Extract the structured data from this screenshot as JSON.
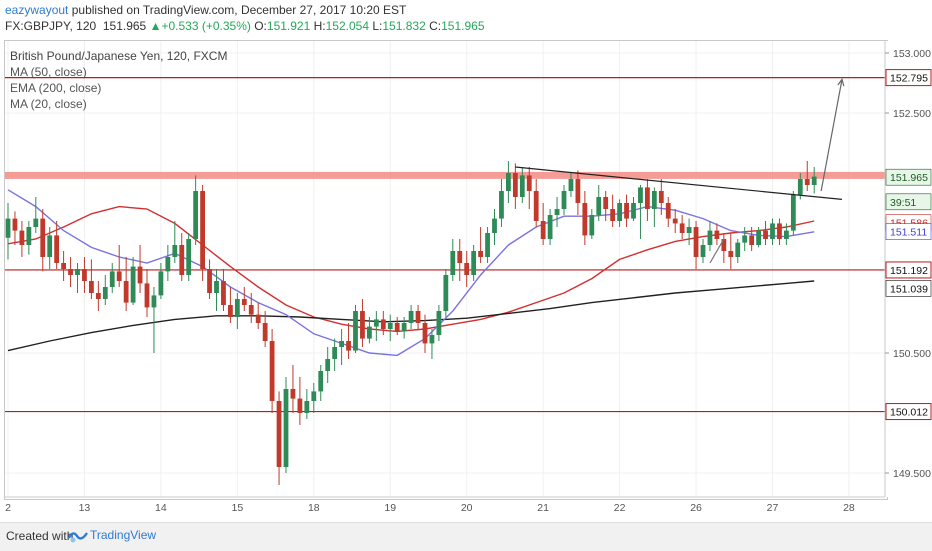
{
  "header": {
    "user": "eazywayout",
    "published": "published on TradingView.com, December 27, 2017 10:20 EST",
    "symbol": "FX:GBPJPY, 120",
    "price": "151.965",
    "change_arrow": "▲",
    "change": "+0.533 (+0.35%)",
    "o_label": "O:",
    "o": "151.921",
    "h_label": "H:",
    "h": "152.054",
    "l_label": "L:",
    "l": "151.832",
    "c_label": "C:",
    "c": "151.965"
  },
  "legend": {
    "title": "British Pound/Japanese Yen, 120, FXCM",
    "ind1": "MA (50, close)",
    "ind2": "EMA (200, close)",
    "ind3": "MA (20, close)"
  },
  "footer": {
    "created": "Created with",
    "brand": "TradingView"
  },
  "chart_data": {
    "type": "candlestick",
    "title": "British Pound/Japanese Yen, 120, FXCM",
    "ylim": [
      149.3,
      153.1
    ],
    "y_ticks": [
      "153.000",
      "152.500",
      "150.500",
      "149.500"
    ],
    "x_ticks": [
      "2",
      "13",
      "14",
      "15",
      "18",
      "19",
      "20",
      "21",
      "22",
      "26",
      "27",
      "28"
    ],
    "x_tick_positions": [
      0,
      11,
      22,
      33,
      44,
      55,
      66,
      77,
      88,
      99,
      110,
      121
    ],
    "horizontal_levels": [
      {
        "value": 152.795,
        "color": "#b71c1c",
        "label": "152.795"
      },
      {
        "value": 151.98,
        "color": "#f28b82",
        "label": "",
        "band": true
      },
      {
        "value": 151.192,
        "color": "#b71c1c",
        "label": "151.192"
      },
      {
        "value": 150.012,
        "color": "#b71c1c",
        "label": "150.012"
      }
    ],
    "price_labels": [
      {
        "value": 151.965,
        "text": "151.965",
        "bg": "#e8f5e9",
        "fg": "#1b5e20"
      },
      {
        "value": 151.76,
        "text": "39:51",
        "bg": "#e8f5e9",
        "fg": "#1b5e20"
      },
      {
        "value": 151.586,
        "text": "151.586",
        "bg": "#ffffff",
        "fg": "#c62828"
      },
      {
        "value": 151.511,
        "text": "151.511",
        "bg": "#ffffff",
        "fg": "#3f3fd0"
      },
      {
        "value": 151.039,
        "text": "151.039",
        "bg": "#ffffff",
        "fg": "#111111"
      }
    ],
    "series": [
      {
        "name": "MA (50, close)",
        "color": "#d32f2f",
        "points": [
          [
            0,
            151.41
          ],
          [
            4,
            151.45
          ],
          [
            8,
            151.55
          ],
          [
            12,
            151.66
          ],
          [
            16,
            151.72
          ],
          [
            20,
            151.7
          ],
          [
            24,
            151.58
          ],
          [
            28,
            151.4
          ],
          [
            32,
            151.22
          ],
          [
            36,
            151.05
          ],
          [
            40,
            150.9
          ],
          [
            44,
            150.8
          ],
          [
            48,
            150.74
          ],
          [
            52,
            150.7
          ],
          [
            56,
            150.68
          ],
          [
            60,
            150.7
          ],
          [
            64,
            150.74
          ],
          [
            68,
            150.78
          ],
          [
            72,
            150.84
          ],
          [
            76,
            150.92
          ],
          [
            80,
            151.0
          ],
          [
            84,
            151.12
          ],
          [
            88,
            151.28
          ],
          [
            92,
            151.36
          ],
          [
            96,
            151.43
          ],
          [
            100,
            151.47
          ],
          [
            104,
            151.5
          ],
          [
            108,
            151.52
          ],
          [
            112,
            151.55
          ],
          [
            116,
            151.6
          ]
        ]
      },
      {
        "name": "EMA (200, close)",
        "color": "#212121",
        "points": [
          [
            0,
            150.52
          ],
          [
            6,
            150.6
          ],
          [
            12,
            150.67
          ],
          [
            18,
            150.73
          ],
          [
            24,
            150.78
          ],
          [
            30,
            150.81
          ],
          [
            36,
            150.81
          ],
          [
            42,
            150.8
          ],
          [
            48,
            150.78
          ],
          [
            54,
            150.76
          ],
          [
            60,
            150.77
          ],
          [
            66,
            150.79
          ],
          [
            72,
            150.83
          ],
          [
            78,
            150.87
          ],
          [
            84,
            150.92
          ],
          [
            90,
            150.96
          ],
          [
            96,
            151.0
          ],
          [
            102,
            151.03
          ],
          [
            108,
            151.06
          ],
          [
            112,
            151.08
          ],
          [
            116,
            151.1
          ]
        ]
      },
      {
        "name": "MA (20, close)",
        "color": "#7a72e0",
        "points": [
          [
            0,
            151.86
          ],
          [
            4,
            151.72
          ],
          [
            8,
            151.52
          ],
          [
            12,
            151.38
          ],
          [
            16,
            151.3
          ],
          [
            20,
            151.25
          ],
          [
            24,
            151.33
          ],
          [
            28,
            151.22
          ],
          [
            32,
            151.05
          ],
          [
            36,
            150.92
          ],
          [
            40,
            150.82
          ],
          [
            44,
            150.66
          ],
          [
            48,
            150.58
          ],
          [
            52,
            150.5
          ],
          [
            56,
            150.48
          ],
          [
            60,
            150.62
          ],
          [
            64,
            150.85
          ],
          [
            68,
            151.15
          ],
          [
            72,
            151.4
          ],
          [
            76,
            151.55
          ],
          [
            80,
            151.64
          ],
          [
            84,
            151.64
          ],
          [
            88,
            151.66
          ],
          [
            92,
            151.72
          ],
          [
            96,
            151.69
          ],
          [
            100,
            151.62
          ],
          [
            104,
            151.52
          ],
          [
            108,
            151.48
          ],
          [
            112,
            151.47
          ],
          [
            116,
            151.51
          ]
        ]
      }
    ],
    "trendlines": [
      {
        "from": [
          73,
          152.05
        ],
        "to": [
          120,
          151.78
        ],
        "color": "#222222"
      },
      {
        "from": [
          117,
          151.85
        ],
        "to": [
          120,
          152.78
        ],
        "color": "#666666",
        "arrow": true
      },
      {
        "from": [
          101,
          151.25
        ],
        "to": [
          103,
          151.45
        ],
        "color": "#777777"
      }
    ],
    "candles": [
      [
        0,
        151.46,
        151.75,
        151.28,
        151.62
      ],
      [
        1,
        151.62,
        151.68,
        151.4,
        151.52
      ],
      [
        2,
        151.52,
        151.6,
        151.3,
        151.4
      ],
      [
        3,
        151.4,
        151.6,
        151.32,
        151.55
      ],
      [
        4,
        151.55,
        151.8,
        151.5,
        151.62
      ],
      [
        5,
        151.62,
        151.7,
        151.18,
        151.3
      ],
      [
        6,
        151.3,
        151.55,
        151.2,
        151.48
      ],
      [
        7,
        151.48,
        151.6,
        151.2,
        151.25
      ],
      [
        8,
        151.25,
        151.35,
        151.1,
        151.2
      ],
      [
        9,
        151.2,
        151.3,
        151.05,
        151.15
      ],
      [
        10,
        151.15,
        151.25,
        151.0,
        151.2
      ],
      [
        11,
        151.2,
        151.3,
        151.0,
        151.1
      ],
      [
        12,
        151.1,
        151.28,
        150.95,
        151.0
      ],
      [
        13,
        151.0,
        151.1,
        150.85,
        150.95
      ],
      [
        14,
        150.95,
        151.15,
        150.9,
        151.05
      ],
      [
        15,
        151.05,
        151.25,
        151.0,
        151.18
      ],
      [
        16,
        151.18,
        151.4,
        151.05,
        151.1
      ],
      [
        17,
        151.1,
        151.3,
        150.85,
        150.92
      ],
      [
        18,
        150.92,
        151.3,
        150.9,
        151.22
      ],
      [
        19,
        151.22,
        151.4,
        151.0,
        151.08
      ],
      [
        20,
        151.08,
        151.2,
        150.8,
        150.88
      ],
      [
        21,
        150.88,
        151.05,
        150.5,
        150.98
      ],
      [
        22,
        150.98,
        151.25,
        150.95,
        151.18
      ],
      [
        23,
        151.18,
        151.4,
        151.1,
        151.3
      ],
      [
        24,
        151.3,
        151.6,
        151.25,
        151.4
      ],
      [
        25,
        151.4,
        151.5,
        151.1,
        151.15
      ],
      [
        26,
        151.15,
        151.5,
        151.1,
        151.45
      ],
      [
        27,
        151.45,
        151.98,
        151.4,
        151.85
      ],
      [
        28,
        151.85,
        151.9,
        151.1,
        151.2
      ],
      [
        29,
        151.2,
        151.28,
        150.95,
        151.0
      ],
      [
        30,
        151.0,
        151.2,
        150.85,
        151.1
      ],
      [
        31,
        151.1,
        151.2,
        150.85,
        150.9
      ],
      [
        32,
        150.9,
        151.05,
        150.75,
        150.8
      ],
      [
        33,
        150.8,
        151.0,
        150.7,
        150.95
      ],
      [
        34,
        150.95,
        151.05,
        150.85,
        150.9
      ],
      [
        35,
        150.9,
        151.0,
        150.75,
        150.82
      ],
      [
        36,
        150.82,
        150.92,
        150.7,
        150.75
      ],
      [
        37,
        150.75,
        150.85,
        150.55,
        150.6
      ],
      [
        38,
        150.6,
        150.7,
        150.0,
        150.1
      ],
      [
        39,
        150.1,
        150.18,
        149.4,
        149.55
      ],
      [
        40,
        149.55,
        150.3,
        149.5,
        150.2
      ],
      [
        41,
        150.2,
        150.4,
        150.0,
        150.12
      ],
      [
        42,
        150.12,
        150.3,
        149.9,
        150.0
      ],
      [
        43,
        150.0,
        150.2,
        149.95,
        150.1
      ],
      [
        44,
        150.1,
        150.25,
        150.0,
        150.18
      ],
      [
        45,
        150.18,
        150.4,
        150.1,
        150.35
      ],
      [
        46,
        150.35,
        150.55,
        150.25,
        150.45
      ],
      [
        47,
        150.45,
        150.62,
        150.35,
        150.55
      ],
      [
        48,
        150.55,
        150.7,
        150.4,
        150.6
      ],
      [
        49,
        150.6,
        150.75,
        150.45,
        150.52
      ],
      [
        50,
        150.52,
        150.9,
        150.5,
        150.85
      ],
      [
        51,
        150.85,
        150.95,
        150.55,
        150.62
      ],
      [
        52,
        150.62,
        150.8,
        150.58,
        150.72
      ],
      [
        53,
        150.72,
        150.85,
        150.6,
        150.78
      ],
      [
        54,
        150.78,
        150.85,
        150.65,
        150.7
      ],
      [
        55,
        150.7,
        150.82,
        150.6,
        150.75
      ],
      [
        56,
        150.75,
        150.8,
        150.65,
        150.68
      ],
      [
        57,
        150.68,
        150.8,
        150.62,
        150.75
      ],
      [
        58,
        150.75,
        150.9,
        150.7,
        150.85
      ],
      [
        59,
        150.85,
        150.9,
        150.7,
        150.75
      ],
      [
        60,
        150.75,
        150.82,
        150.5,
        150.58
      ],
      [
        61,
        150.58,
        150.7,
        150.45,
        150.65
      ],
      [
        62,
        150.65,
        150.9,
        150.6,
        150.85
      ],
      [
        63,
        150.85,
        151.2,
        150.8,
        151.15
      ],
      [
        64,
        151.15,
        151.45,
        151.1,
        151.35
      ],
      [
        65,
        151.35,
        151.45,
        151.1,
        151.25
      ],
      [
        66,
        151.25,
        151.35,
        151.05,
        151.15
      ],
      [
        67,
        151.15,
        151.4,
        151.1,
        151.35
      ],
      [
        68,
        151.35,
        151.55,
        151.25,
        151.3
      ],
      [
        69,
        151.3,
        151.55,
        151.25,
        151.5
      ],
      [
        70,
        151.5,
        151.7,
        151.4,
        151.62
      ],
      [
        71,
        151.62,
        151.95,
        151.55,
        151.85
      ],
      [
        72,
        151.85,
        152.1,
        151.75,
        152.0
      ],
      [
        73,
        152.0,
        152.08,
        151.7,
        151.8
      ],
      [
        74,
        151.8,
        152.05,
        151.75,
        151.98
      ],
      [
        75,
        151.98,
        152.05,
        151.7,
        151.85
      ],
      [
        76,
        151.85,
        151.95,
        151.55,
        151.6
      ],
      [
        77,
        151.6,
        151.75,
        151.4,
        151.45
      ],
      [
        78,
        151.45,
        151.7,
        151.4,
        151.65
      ],
      [
        79,
        151.65,
        151.8,
        151.55,
        151.7
      ],
      [
        80,
        151.7,
        151.9,
        151.65,
        151.85
      ],
      [
        81,
        151.85,
        152.0,
        151.8,
        151.95
      ],
      [
        82,
        151.95,
        152.02,
        151.65,
        151.75
      ],
      [
        83,
        151.75,
        151.85,
        151.4,
        151.48
      ],
      [
        84,
        151.48,
        151.7,
        151.45,
        151.65
      ],
      [
        85,
        151.65,
        151.9,
        151.6,
        151.8
      ],
      [
        86,
        151.8,
        151.85,
        151.6,
        151.7
      ],
      [
        87,
        151.7,
        151.82,
        151.55,
        151.6
      ],
      [
        88,
        151.6,
        151.78,
        151.55,
        151.75
      ],
      [
        89,
        151.75,
        151.82,
        151.55,
        151.62
      ],
      [
        90,
        151.62,
        151.8,
        151.6,
        151.75
      ],
      [
        91,
        151.75,
        151.9,
        151.45,
        151.88
      ],
      [
        92,
        151.88,
        151.95,
        151.6,
        151.7
      ],
      [
        93,
        151.7,
        151.88,
        151.55,
        151.85
      ],
      [
        94,
        151.85,
        151.95,
        151.65,
        151.75
      ],
      [
        95,
        151.75,
        151.8,
        151.55,
        151.62
      ],
      [
        96,
        151.62,
        151.7,
        151.5,
        151.58
      ],
      [
        97,
        151.58,
        151.65,
        151.45,
        151.5
      ],
      [
        98,
        151.5,
        151.62,
        151.4,
        151.55
      ],
      [
        99,
        151.55,
        151.6,
        151.2,
        151.3
      ],
      [
        100,
        151.3,
        151.45,
        151.25,
        151.4
      ],
      [
        101,
        151.4,
        151.6,
        151.35,
        151.52
      ],
      [
        102,
        151.52,
        151.58,
        151.4,
        151.45
      ],
      [
        103,
        151.45,
        151.5,
        151.25,
        151.35
      ],
      [
        104,
        151.35,
        151.5,
        151.2,
        151.3
      ],
      [
        105,
        151.3,
        151.45,
        151.25,
        151.42
      ],
      [
        106,
        151.42,
        151.55,
        151.35,
        151.48
      ],
      [
        107,
        151.48,
        151.55,
        151.35,
        151.4
      ],
      [
        108,
        151.4,
        151.55,
        151.38,
        151.52
      ],
      [
        109,
        151.52,
        151.6,
        151.4,
        151.45
      ],
      [
        110,
        151.45,
        151.62,
        151.4,
        151.58
      ],
      [
        111,
        151.58,
        151.62,
        151.4,
        151.45
      ],
      [
        112,
        151.45,
        151.58,
        151.4,
        151.52
      ],
      [
        113,
        151.52,
        151.85,
        151.48,
        151.82
      ],
      [
        114,
        151.82,
        152.0,
        151.78,
        151.95
      ],
      [
        115,
        151.95,
        152.1,
        151.85,
        151.9
      ],
      [
        116,
        151.9,
        152.05,
        151.83,
        151.97
      ]
    ]
  },
  "colors": {
    "up": "#2e8b57",
    "down": "#c0392b",
    "grid": "#f0f0f0"
  }
}
